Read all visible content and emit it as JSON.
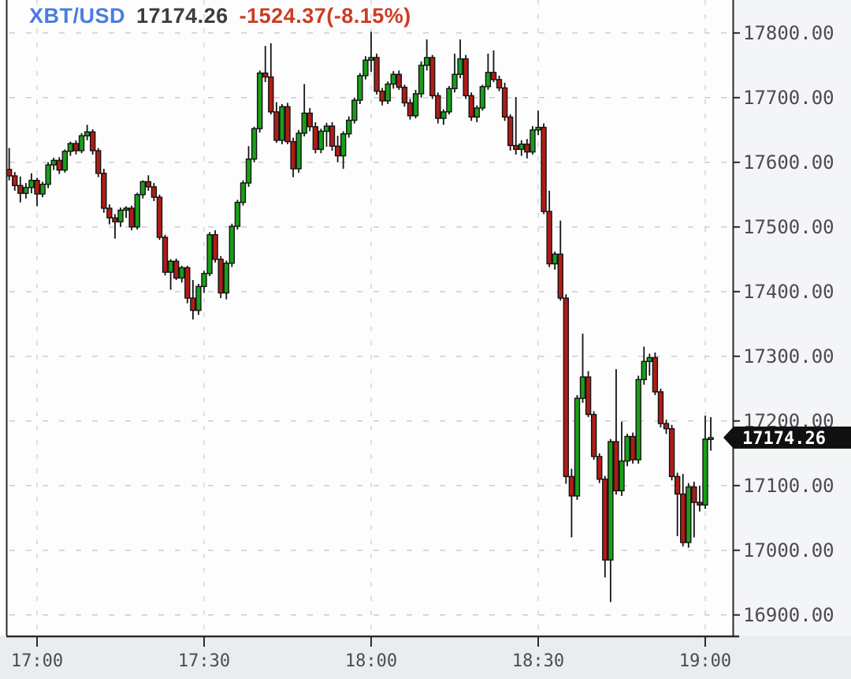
{
  "header": {
    "symbol": "XBT/USD",
    "last_price": "17174.26",
    "change": "-1524.37(-8.15%)"
  },
  "price_tag": {
    "label": "17174.26",
    "value": 17174.26
  },
  "colors": {
    "up": "#18a018",
    "down": "#b01d17",
    "candle_outline": "#141414",
    "wick": "#141414",
    "symbol_blue": "#4a7ce0",
    "price_dark": "#3c3c3f",
    "change_red": "#cc3c22",
    "grid": "#c5c9cc",
    "grid_vertical": "#ced2d6",
    "axis_line": "#2b2b2b",
    "tick_text": "#4b4b50",
    "plot_bg": "#fdfdfe",
    "margin_bg": "#e9edf0",
    "axis_col_bg": "#f4f5f7",
    "tag_bg": "#101010",
    "tag_text": "#ffffff"
  },
  "chart_data": {
    "type": "candlestick",
    "title": "XBT/USD 1-minute candles",
    "x_ticks": [
      "17:00",
      "17:30",
      "18:00",
      "18:30",
      "19:00"
    ],
    "y_ticks": [
      "17800.00",
      "17700.00",
      "17600.00",
      "17500.00",
      "17400.00",
      "17300.00",
      "17200.00",
      "17100.00",
      "17000.00",
      "16900.00"
    ],
    "ylim": [
      16868,
      17851
    ],
    "grid": true,
    "legend_position": "top-left",
    "candles": [
      [
        "16:54",
        17622,
        17635,
        17585,
        17589
      ],
      [
        "16:55",
        17589,
        17622,
        17572,
        17579
      ],
      [
        "16:56",
        17579,
        17585,
        17556,
        17564
      ],
      [
        "16:57",
        17564,
        17578,
        17538,
        17552
      ],
      [
        "16:58",
        17552,
        17568,
        17544,
        17561
      ],
      [
        "16:59",
        17561,
        17583,
        17552,
        17572
      ],
      [
        "17:00",
        17572,
        17576,
        17532,
        17551
      ],
      [
        "17:01",
        17551,
        17570,
        17546,
        17566
      ],
      [
        "17:02",
        17566,
        17600,
        17560,
        17596
      ],
      [
        "17:03",
        17596,
        17607,
        17588,
        17603
      ],
      [
        "17:04",
        17603,
        17608,
        17582,
        17588
      ],
      [
        "17:05",
        17588,
        17620,
        17584,
        17617
      ],
      [
        "17:06",
        17617,
        17632,
        17610,
        17629
      ],
      [
        "17:07",
        17629,
        17634,
        17612,
        17618
      ],
      [
        "17:08",
        17618,
        17645,
        17614,
        17641
      ],
      [
        "17:09",
        17641,
        17658,
        17634,
        17647
      ],
      [
        "17:10",
        17647,
        17651,
        17612,
        17618
      ],
      [
        "17:11",
        17618,
        17622,
        17577,
        17583
      ],
      [
        "17:12",
        17583,
        17590,
        17522,
        17529
      ],
      [
        "17:13",
        17529,
        17535,
        17504,
        17514
      ],
      [
        "17:14",
        17514,
        17520,
        17482,
        17508
      ],
      [
        "17:15",
        17508,
        17530,
        17500,
        17526
      ],
      [
        "17:16",
        17526,
        17532,
        17514,
        17529
      ],
      [
        "17:17",
        17529,
        17533,
        17495,
        17500
      ],
      [
        "17:18",
        17500,
        17553,
        17496,
        17550
      ],
      [
        "17:19",
        17550,
        17572,
        17544,
        17570
      ],
      [
        "17:20",
        17570,
        17580,
        17556,
        17562
      ],
      [
        "17:21",
        17562,
        17568,
        17540,
        17546
      ],
      [
        "17:22",
        17546,
        17550,
        17480,
        17484
      ],
      [
        "17:23",
        17484,
        17488,
        17425,
        17430
      ],
      [
        "17:24",
        17430,
        17450,
        17403,
        17447
      ],
      [
        "17:25",
        17447,
        17451,
        17418,
        17421
      ],
      [
        "17:26",
        17421,
        17440,
        17414,
        17437
      ],
      [
        "17:27",
        17437,
        17440,
        17382,
        17390
      ],
      [
        "17:28",
        17390,
        17418,
        17357,
        17371
      ],
      [
        "17:29",
        17371,
        17412,
        17364,
        17408
      ],
      [
        "17:30",
        17408,
        17432,
        17398,
        17428
      ],
      [
        "17:31",
        17428,
        17492,
        17424,
        17488
      ],
      [
        "17:32",
        17488,
        17495,
        17445,
        17450
      ],
      [
        "17:33",
        17450,
        17455,
        17390,
        17398
      ],
      [
        "17:34",
        17398,
        17448,
        17388,
        17444
      ],
      [
        "17:35",
        17444,
        17505,
        17438,
        17501
      ],
      [
        "17:36",
        17501,
        17542,
        17496,
        17538
      ],
      [
        "17:37",
        17538,
        17572,
        17533,
        17568
      ],
      [
        "17:38",
        17568,
        17625,
        17562,
        17605
      ],
      [
        "17:39",
        17605,
        17655,
        17600,
        17652
      ],
      [
        "17:40",
        17652,
        17742,
        17646,
        17738
      ],
      [
        "17:41",
        17738,
        17780,
        17724,
        17732
      ],
      [
        "17:42",
        17732,
        17784,
        17674,
        17678
      ],
      [
        "17:43",
        17678,
        17693,
        17630,
        17634
      ],
      [
        "17:44",
        17634,
        17690,
        17628,
        17686
      ],
      [
        "17:45",
        17686,
        17692,
        17628,
        17632
      ],
      [
        "17:46",
        17632,
        17638,
        17577,
        17590
      ],
      [
        "17:47",
        17590,
        17650,
        17584,
        17645
      ],
      [
        "17:48",
        17645,
        17721,
        17640,
        17676
      ],
      [
        "17:49",
        17676,
        17684,
        17648,
        17655
      ],
      [
        "17:50",
        17655,
        17662,
        17614,
        17620
      ],
      [
        "17:51",
        17620,
        17652,
        17614,
        17648
      ],
      [
        "17:52",
        17648,
        17661,
        17624,
        17656
      ],
      [
        "17:53",
        17656,
        17662,
        17618,
        17625
      ],
      [
        "17:54",
        17625,
        17641,
        17600,
        17610
      ],
      [
        "17:55",
        17610,
        17648,
        17590,
        17644
      ],
      [
        "17:56",
        17644,
        17671,
        17638,
        17665
      ],
      [
        "17:57",
        17665,
        17700,
        17660,
        17696
      ],
      [
        "17:58",
        17696,
        17738,
        17690,
        17734
      ],
      [
        "17:59",
        17734,
        17764,
        17728,
        17758
      ],
      [
        "18:00",
        17758,
        17802,
        17740,
        17762
      ],
      [
        "18:01",
        17762,
        17768,
        17705,
        17710
      ],
      [
        "18:02",
        17710,
        17715,
        17688,
        17695
      ],
      [
        "18:03",
        17695,
        17725,
        17690,
        17721
      ],
      [
        "18:04",
        17721,
        17741,
        17714,
        17736
      ],
      [
        "18:05",
        17736,
        17742,
        17712,
        17716
      ],
      [
        "18:06",
        17716,
        17720,
        17686,
        17692
      ],
      [
        "18:07",
        17692,
        17698,
        17666,
        17672
      ],
      [
        "18:08",
        17672,
        17712,
        17668,
        17706
      ],
      [
        "18:09",
        17706,
        17756,
        17700,
        17750
      ],
      [
        "18:10",
        17750,
        17790,
        17742,
        17762
      ],
      [
        "18:11",
        17762,
        17766,
        17698,
        17703
      ],
      [
        "18:12",
        17703,
        17708,
        17660,
        17668
      ],
      [
        "18:13",
        17668,
        17682,
        17658,
        17678
      ],
      [
        "18:14",
        17678,
        17718,
        17674,
        17714
      ],
      [
        "18:15",
        17714,
        17768,
        17708,
        17736
      ],
      [
        "18:16",
        17736,
        17790,
        17730,
        17760
      ],
      [
        "18:17",
        17760,
        17766,
        17698,
        17703
      ],
      [
        "18:18",
        17703,
        17708,
        17664,
        17670
      ],
      [
        "18:19",
        17670,
        17688,
        17662,
        17684
      ],
      [
        "18:20",
        17684,
        17720,
        17680,
        17717
      ],
      [
        "18:21",
        17717,
        17768,
        17712,
        17739
      ],
      [
        "18:22",
        17739,
        17773,
        17724,
        17728
      ],
      [
        "18:23",
        17728,
        17734,
        17710,
        17715
      ],
      [
        "18:24",
        17715,
        17723,
        17664,
        17670
      ],
      [
        "18:25",
        17670,
        17674,
        17618,
        17626
      ],
      [
        "18:26",
        17626,
        17701,
        17612,
        17620
      ],
      [
        "18:27",
        17620,
        17634,
        17610,
        17628
      ],
      [
        "18:28",
        17628,
        17636,
        17606,
        17616
      ],
      [
        "18:29",
        17616,
        17656,
        17612,
        17650
      ],
      [
        "18:30",
        17650,
        17680,
        17642,
        17654
      ],
      [
        "18:31",
        17654,
        17660,
        17520,
        17524
      ],
      [
        "18:32",
        17524,
        17556,
        17438,
        17443
      ],
      [
        "18:33",
        17443,
        17462,
        17434,
        17458
      ],
      [
        "18:34",
        17458,
        17510,
        17386,
        17390
      ],
      [
        "18:35",
        17390,
        17396,
        17103,
        17114
      ],
      [
        "18:36",
        17114,
        17126,
        17020,
        17084
      ],
      [
        "18:37",
        17084,
        17240,
        17078,
        17235
      ],
      [
        "18:38",
        17235,
        17335,
        17228,
        17268
      ],
      [
        "18:39",
        17268,
        17277,
        17206,
        17210
      ],
      [
        "18:40",
        17210,
        17215,
        17140,
        17145
      ],
      [
        "18:41",
        17145,
        17150,
        17104,
        17110
      ],
      [
        "18:42",
        17110,
        17115,
        16958,
        16985
      ],
      [
        "18:43",
        16985,
        17172,
        16920,
        17168
      ],
      [
        "18:44",
        17168,
        17280,
        17086,
        17092
      ],
      [
        "18:45",
        17092,
        17199,
        17084,
        17138
      ],
      [
        "18:46",
        17138,
        17180,
        17130,
        17176
      ],
      [
        "18:47",
        17176,
        17182,
        17134,
        17140
      ],
      [
        "18:48",
        17140,
        17270,
        17134,
        17264
      ],
      [
        "18:49",
        17264,
        17315,
        17256,
        17292
      ],
      [
        "18:50",
        17292,
        17304,
        17270,
        17298
      ],
      [
        "18:51",
        17298,
        17306,
        17240,
        17245
      ],
      [
        "18:52",
        17245,
        17250,
        17190,
        17196
      ],
      [
        "18:53",
        17196,
        17202,
        17180,
        17188
      ],
      [
        "18:54",
        17188,
        17194,
        17108,
        17114
      ],
      [
        "18:55",
        17114,
        17120,
        17022,
        17087
      ],
      [
        "18:56",
        17087,
        17118,
        17006,
        17012
      ],
      [
        "18:57",
        17012,
        17104,
        17004,
        17098
      ],
      [
        "18:58",
        17098,
        17106,
        17020,
        17074
      ],
      [
        "18:59",
        17074,
        17100,
        17060,
        17070
      ],
      [
        "19:00",
        17070,
        17208,
        17064,
        17172
      ],
      [
        "19:01",
        17172,
        17206,
        17154,
        17174.26
      ]
    ]
  }
}
